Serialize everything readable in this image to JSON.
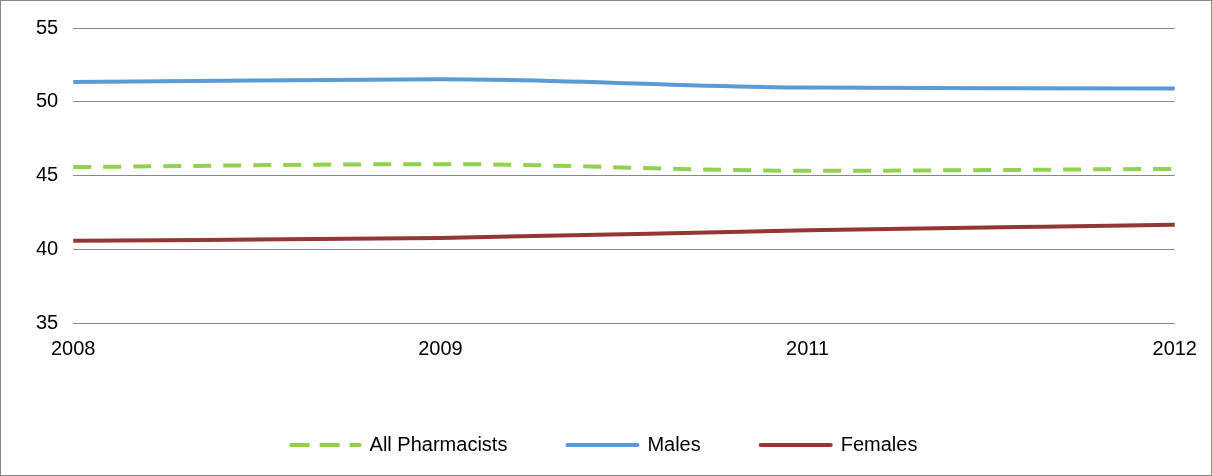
{
  "chart_data": {
    "type": "line",
    "categories": [
      "2008",
      "2009",
      "2011",
      "2012"
    ],
    "series": [
      {
        "name": "All Pharmacists",
        "color": "#92d050",
        "values": [
          45.57,
          45.77,
          45.32,
          45.45
        ],
        "line_style": "dashed"
      },
      {
        "name": "Males",
        "color": "#5b9bd5",
        "values": [
          51.34,
          51.53,
          50.96,
          50.9
        ],
        "line_style": "solid"
      },
      {
        "name": "Females",
        "color": "#943634",
        "values": [
          40.57,
          40.77,
          41.28,
          41.66
        ],
        "line_style": "solid"
      }
    ],
    "ylim": [
      35,
      55
    ],
    "yticks": [
      35,
      40,
      45,
      50,
      55
    ],
    "grid": "y",
    "legend": "bottom",
    "marker": "none"
  }
}
